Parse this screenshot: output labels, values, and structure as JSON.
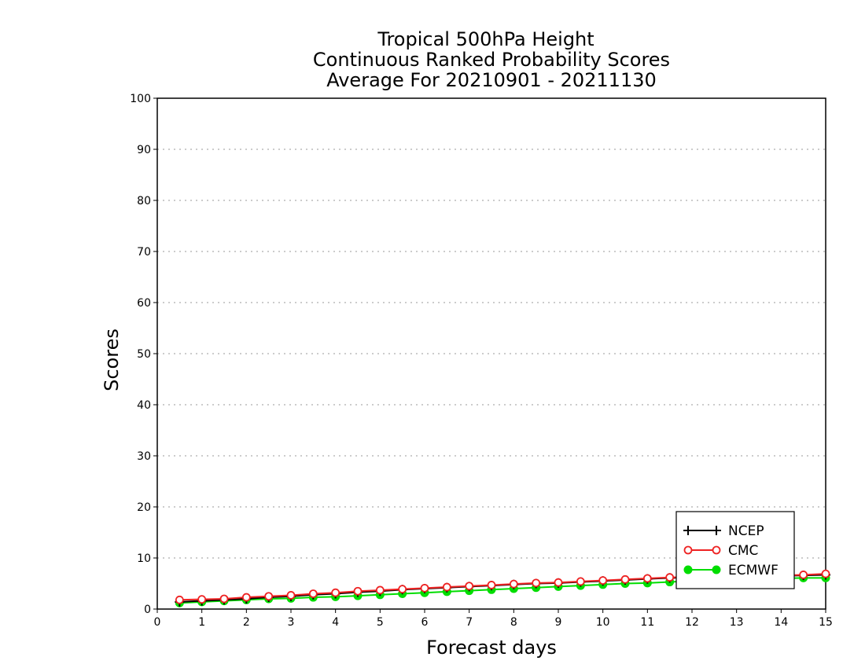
{
  "chart_data": {
    "type": "line",
    "title": [
      "Tropical 500hPa Height",
      "Continuous Ranked Probability Scores",
      "Average For 20210901 - 20211130"
    ],
    "xlabel": "Forecast days",
    "ylabel": "Scores",
    "xlim": [
      0,
      15
    ],
    "ylim": [
      0,
      100
    ],
    "xticks": [
      0,
      1,
      2,
      3,
      4,
      5,
      6,
      7,
      8,
      9,
      10,
      11,
      12,
      13,
      14,
      15
    ],
    "yticks": [
      0,
      10,
      20,
      30,
      40,
      50,
      60,
      70,
      80,
      90,
      100
    ],
    "grid": "horizontal dotted",
    "legend_position": "bottom-right",
    "x": [
      0.5,
      1,
      1.5,
      2,
      2.5,
      3,
      3.5,
      4,
      4.5,
      5,
      5.5,
      6,
      6.5,
      7,
      7.5,
      8,
      8.5,
      9,
      9.5,
      10,
      10.5,
      11,
      11.5,
      12,
      12.5,
      13,
      13.5,
      14,
      14.5,
      15
    ],
    "series": [
      {
        "name": "NCEP",
        "color": "#000000",
        "marker": "plus",
        "values": [
          1.4,
          1.6,
          1.8,
          2.0,
          2.3,
          2.5,
          2.8,
          3.0,
          3.3,
          3.5,
          3.8,
          4.0,
          4.2,
          4.4,
          4.6,
          4.8,
          5.0,
          5.1,
          5.3,
          5.5,
          5.7,
          5.9,
          6.1,
          6.2,
          6.3,
          6.4,
          6.5,
          6.5,
          6.6,
          6.7
        ]
      },
      {
        "name": "CMC",
        "color": "#ee2222",
        "marker": "open-circle",
        "values": [
          1.8,
          1.9,
          2.0,
          2.3,
          2.5,
          2.7,
          3.0,
          3.2,
          3.5,
          3.7,
          3.9,
          4.1,
          4.3,
          4.5,
          4.7,
          4.9,
          5.1,
          5.2,
          5.4,
          5.6,
          5.8,
          6.0,
          6.2,
          6.3,
          6.4,
          6.5,
          6.6,
          6.6,
          6.7,
          6.9
        ]
      },
      {
        "name": "ECMWF",
        "color": "#00dd00",
        "marker": "filled-circle",
        "values": [
          1.2,
          1.4,
          1.6,
          1.8,
          2.0,
          2.1,
          2.3,
          2.4,
          2.6,
          2.8,
          3.0,
          3.2,
          3.4,
          3.6,
          3.8,
          4.0,
          4.2,
          4.4,
          4.6,
          4.8,
          5.0,
          5.1,
          5.3,
          5.5,
          5.6,
          5.8,
          5.9,
          6.0,
          6.1,
          6.1
        ]
      }
    ]
  }
}
